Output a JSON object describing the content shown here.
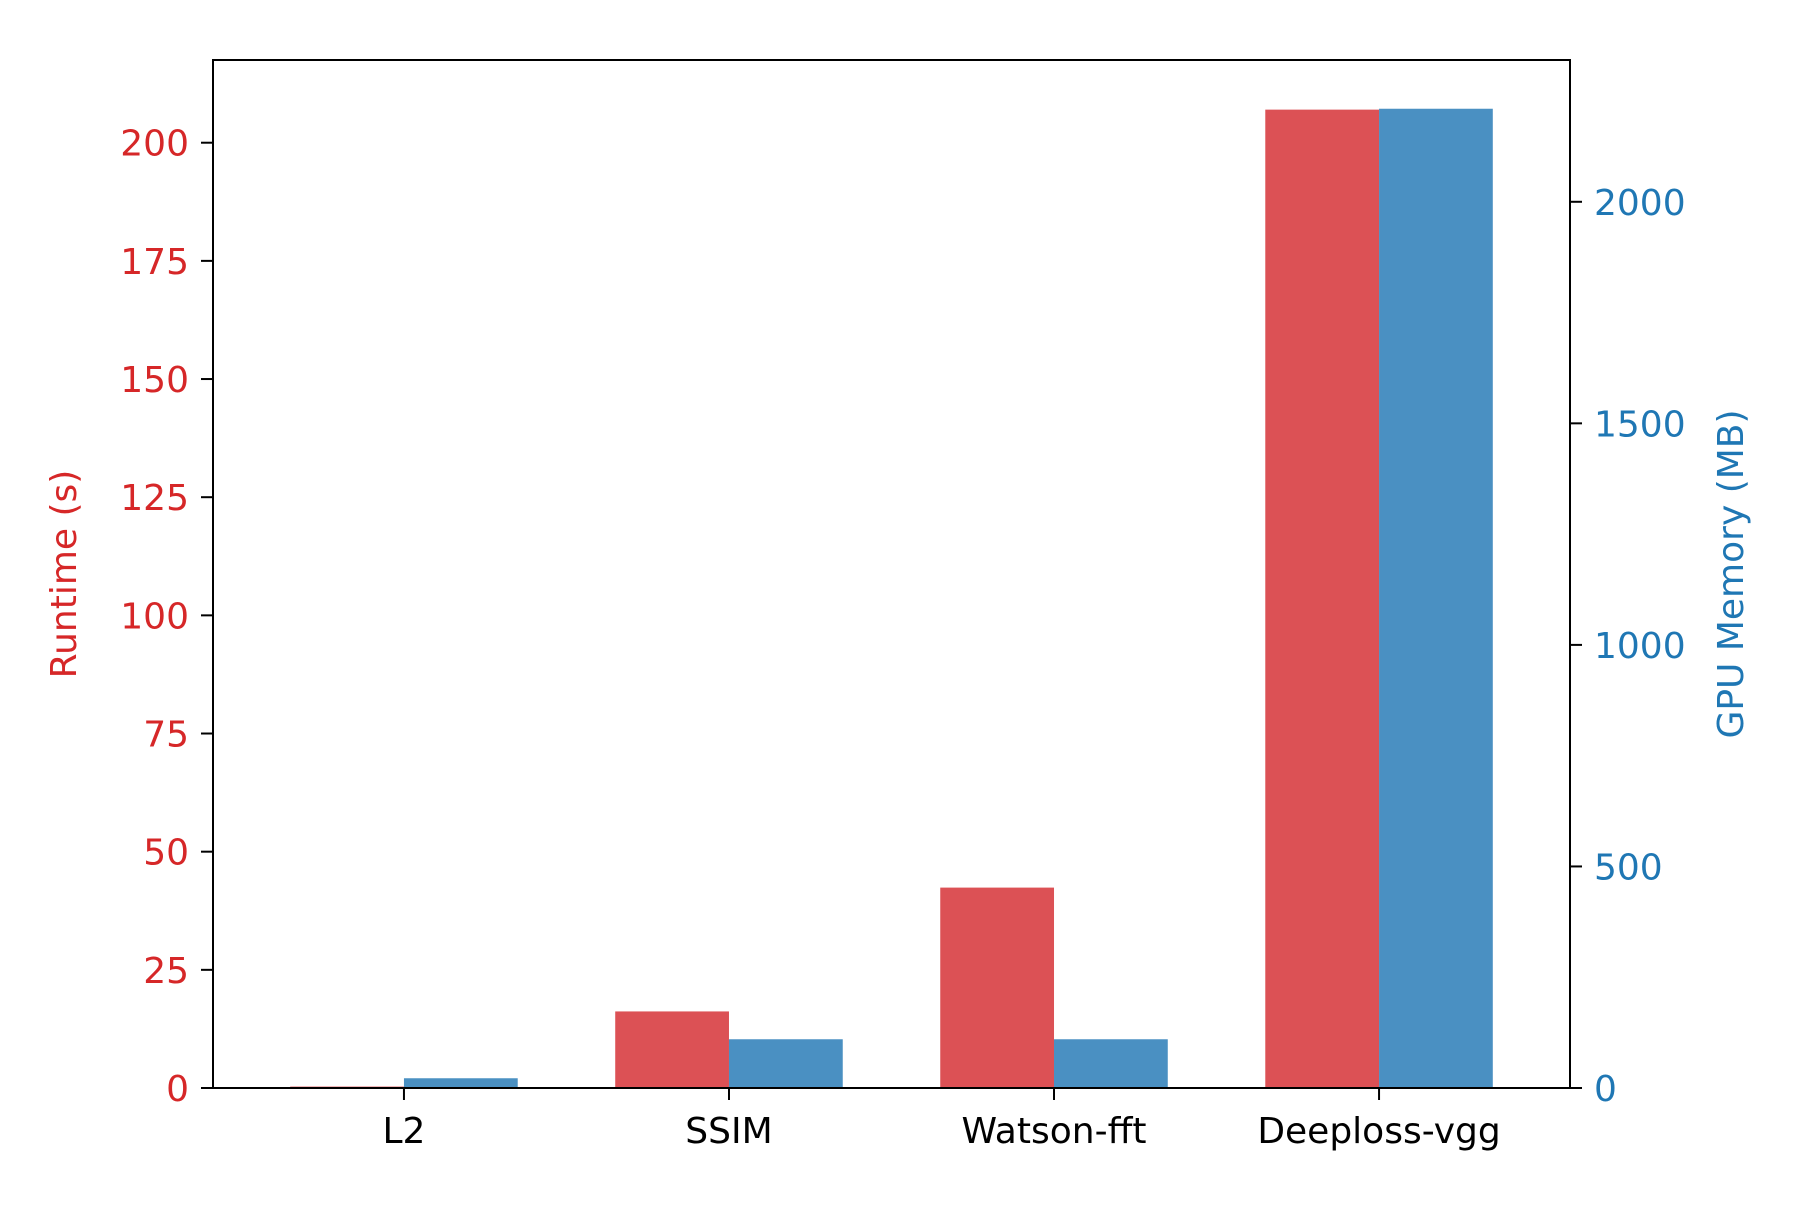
{
  "chart_data": {
    "type": "bar",
    "title": "",
    "categories": [
      "L2",
      "SSIM",
      "Watson-fft",
      "Deeploss-vgg"
    ],
    "series": [
      {
        "name": "Runtime (s)",
        "axis": "left",
        "color": "#dc5155",
        "values": [
          0.3,
          16.2,
          42.4,
          207.0
        ]
      },
      {
        "name": "GPU Memory (MB)",
        "axis": "right",
        "color": "#4a90c2",
        "values": [
          22,
          110,
          110,
          2210
        ]
      }
    ],
    "left_axis": {
      "label": "Runtime (s)",
      "color": "#d62728",
      "ylim": [
        0,
        217.5
      ],
      "ticks": [
        0,
        25,
        50,
        75,
        100,
        125,
        150,
        175,
        200
      ]
    },
    "right_axis": {
      "label": "GPU Memory (MB)",
      "color": "#1f77b4",
      "ylim": [
        0,
        2320
      ],
      "ticks": [
        0,
        500,
        1000,
        1500,
        2000
      ]
    },
    "grid": false,
    "legend": "none"
  }
}
